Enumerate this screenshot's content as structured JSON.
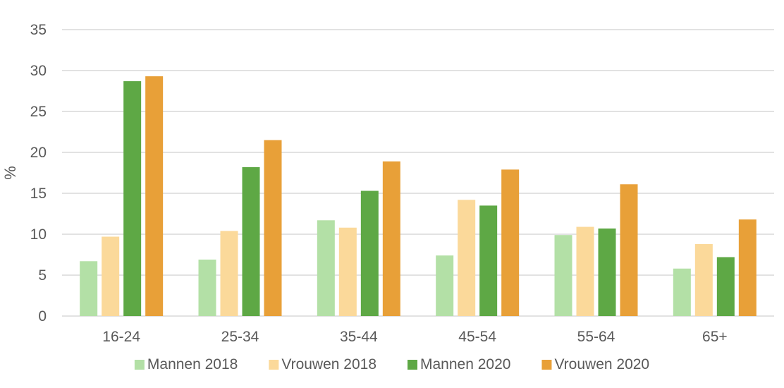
{
  "chart_data": {
    "type": "bar",
    "title": "",
    "xlabel": "",
    "ylabel": "%",
    "ylim": [
      0,
      35
    ],
    "yticks": [
      0,
      5,
      10,
      15,
      20,
      25,
      30,
      35
    ],
    "grid": true,
    "legend_position": "bottom",
    "categories": [
      "16-24",
      "25-34",
      "35-44",
      "45-54",
      "55-64",
      "65+"
    ],
    "series": [
      {
        "name": "Mannen 2018",
        "color": "#b3e0a6",
        "values": [
          6.7,
          6.9,
          11.7,
          7.4,
          9.9,
          5.8
        ]
      },
      {
        "name": "Vrouwen 2018",
        "color": "#fbd99a",
        "values": [
          9.7,
          10.4,
          10.8,
          14.2,
          10.9,
          8.8
        ]
      },
      {
        "name": "Mannen 2020",
        "color": "#5ea845",
        "values": [
          28.7,
          18.2,
          15.3,
          13.5,
          10.7,
          7.2
        ]
      },
      {
        "name": "Vrouwen 2020",
        "color": "#e8a038",
        "values": [
          29.3,
          21.5,
          18.9,
          17.9,
          16.1,
          11.8
        ]
      }
    ]
  }
}
